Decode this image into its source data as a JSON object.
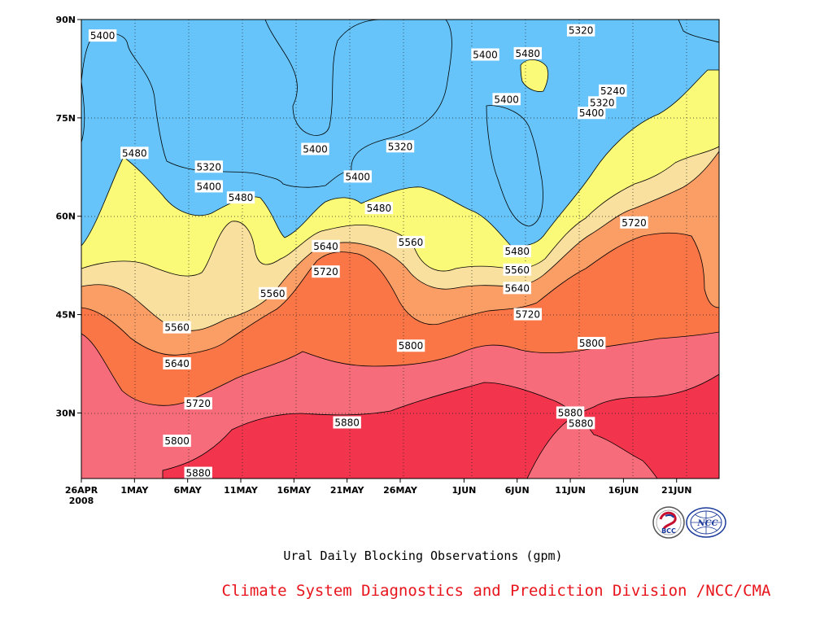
{
  "chart_data": {
    "type": "contour",
    "title": "Ural Daily Blocking Observations (gpm)",
    "subtitle": "Climate System Diagnostics and Prediction Division /NCC/CMA",
    "x_ticks": [
      "26APR",
      "1MAY",
      "6MAY",
      "11MAY",
      "16MAY",
      "21MAY",
      "26MAY",
      "1JUN",
      "6JUN",
      "11JUN",
      "16JUN",
      "21JUN"
    ],
    "x_year": "2008",
    "y_ticks": [
      "90N",
      "75N",
      "60N",
      "45N",
      "30N"
    ],
    "xlim": [
      "2008-04-26",
      "2008-06-25"
    ],
    "ylim": [
      20,
      90
    ],
    "contour_levels": [
      5240,
      5320,
      5400,
      5480,
      5560,
      5640,
      5720,
      5800,
      5880
    ],
    "colors": [
      "#1e22e6",
      "#4b50f0",
      "#5a92e6",
      "#66c4fa",
      "#fafa78",
      "#fae09e",
      "#fa9e66",
      "#fa7646",
      "#f66c7a",
      "#f2344c"
    ],
    "contour_labels": [
      {
        "value": "5400",
        "x": "2008-04-28",
        "y": 87.5
      },
      {
        "value": "5480",
        "x": "2008-05-01",
        "y": 69.6
      },
      {
        "value": "5320",
        "x": "2008-05-08",
        "y": 67.5
      },
      {
        "value": "5400",
        "x": "2008-05-08",
        "y": 64.5
      },
      {
        "value": "5480",
        "x": "2008-05-11",
        "y": 62.8
      },
      {
        "value": "5400",
        "x": "2008-05-18",
        "y": 70.2
      },
      {
        "value": "5400",
        "x": "2008-05-22",
        "y": 66.0
      },
      {
        "value": "5320",
        "x": "2008-05-26",
        "y": 70.6
      },
      {
        "value": "5480",
        "x": "2008-05-24",
        "y": 61.2
      },
      {
        "value": "5560",
        "x": "2008-05-27",
        "y": 56.0
      },
      {
        "value": "5640",
        "x": "2008-05-19",
        "y": 55.4
      },
      {
        "value": "5720",
        "x": "2008-05-19",
        "y": 51.5
      },
      {
        "value": "5560",
        "x": "2008-05-14",
        "y": 48.2
      },
      {
        "value": "5560",
        "x": "2008-05-05",
        "y": 43.0
      },
      {
        "value": "5640",
        "x": "2008-05-05",
        "y": 37.5
      },
      {
        "value": "5720",
        "x": "2008-05-07",
        "y": 31.4
      },
      {
        "value": "5800",
        "x": "2008-05-05",
        "y": 25.7
      },
      {
        "value": "5880",
        "x": "2008-05-07",
        "y": 20.8
      },
      {
        "value": "5800",
        "x": "2008-05-27",
        "y": 40.2
      },
      {
        "value": "5880",
        "x": "2008-05-21",
        "y": 28.5
      },
      {
        "value": "5400",
        "x": "2008-06-03",
        "y": 84.6
      },
      {
        "value": "5480",
        "x": "2008-06-07",
        "y": 84.8
      },
      {
        "value": "5400",
        "x": "2008-06-05",
        "y": 77.8
      },
      {
        "value": "5320",
        "x": "2008-06-12",
        "y": 88.3
      },
      {
        "value": "5240",
        "x": "2008-06-15",
        "y": 79.1
      },
      {
        "value": "5320",
        "x": "2008-06-14",
        "y": 77.3
      },
      {
        "value": "5400",
        "x": "2008-06-13",
        "y": 75.7
      },
      {
        "value": "5720",
        "x": "2008-06-17",
        "y": 59.0
      },
      {
        "value": "5480",
        "x": "2008-06-06",
        "y": 54.6
      },
      {
        "value": "5560",
        "x": "2008-06-06",
        "y": 51.8
      },
      {
        "value": "5640",
        "x": "2008-06-06",
        "y": 49.0
      },
      {
        "value": "5720",
        "x": "2008-06-07",
        "y": 45.0
      },
      {
        "value": "5800",
        "x": "2008-06-13",
        "y": 40.6
      },
      {
        "value": "5880",
        "x": "2008-06-11",
        "y": 30.0
      },
      {
        "value": "5880",
        "x": "2008-06-12",
        "y": 28.4
      }
    ],
    "grid": "dotted",
    "logos": [
      "BCC",
      "NCC"
    ]
  }
}
